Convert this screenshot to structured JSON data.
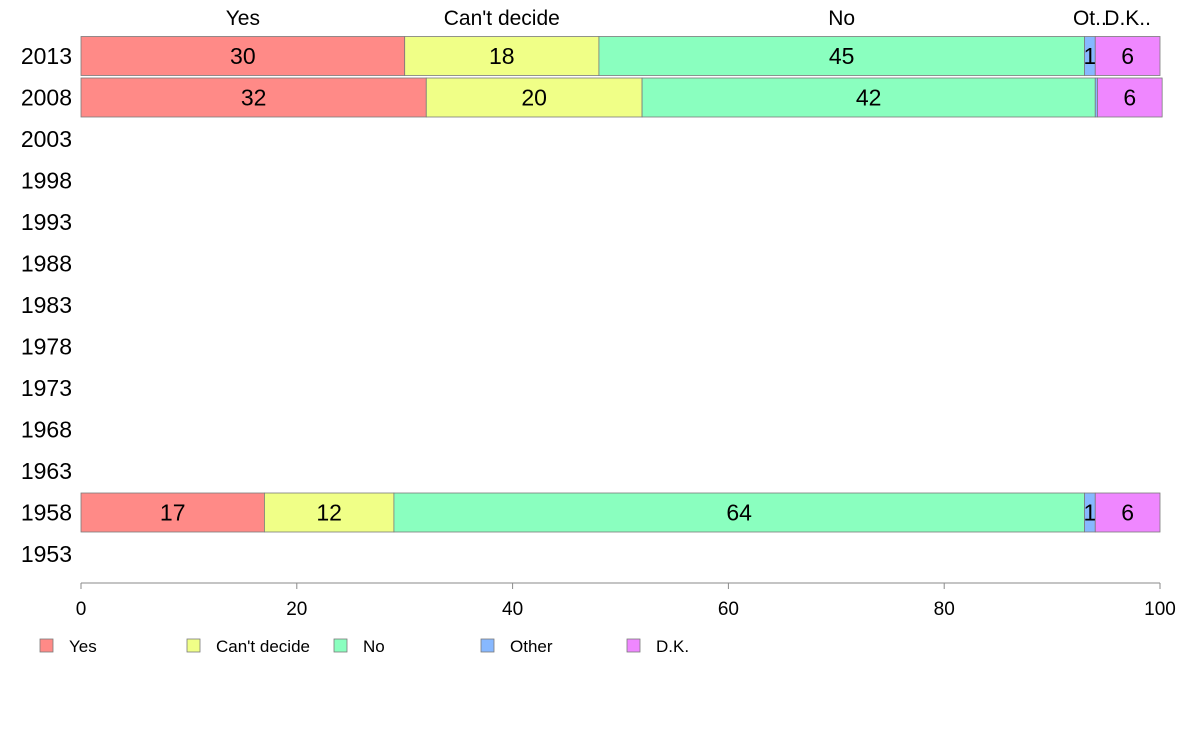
{
  "chart_data": {
    "type": "bar",
    "orientation": "horizontal",
    "stacked": true,
    "categories": [
      "2013",
      "2008",
      "2003",
      "1998",
      "1993",
      "1988",
      "1983",
      "1978",
      "1973",
      "1968",
      "1963",
      "1958",
      "1953"
    ],
    "series": [
      {
        "name": "Yes",
        "color": "#ff8a87",
        "values": [
          30,
          32,
          null,
          null,
          null,
          null,
          null,
          null,
          null,
          null,
          null,
          17,
          null
        ]
      },
      {
        "name": "Can't decide",
        "color": "#f0ff87",
        "values": [
          18,
          20,
          null,
          null,
          null,
          null,
          null,
          null,
          null,
          null,
          null,
          12,
          null
        ]
      },
      {
        "name": "No",
        "color": "#8affbf",
        "values": [
          45,
          42,
          null,
          null,
          null,
          null,
          null,
          null,
          null,
          null,
          null,
          64,
          null
        ]
      },
      {
        "name": "Other",
        "color": "#87b8ff",
        "values": [
          1,
          0.2,
          null,
          null,
          null,
          null,
          null,
          null,
          null,
          null,
          null,
          1,
          null
        ]
      },
      {
        "name": "D.K.",
        "color": "#ef87ff",
        "values": [
          6,
          6,
          null,
          null,
          null,
          null,
          null,
          null,
          null,
          null,
          null,
          6,
          null
        ]
      }
    ],
    "data_labels": [
      [
        "30",
        "18",
        "45",
        "1",
        "6"
      ],
      [
        "32",
        "20",
        "42",
        "",
        "6"
      ],
      [],
      [],
      [],
      [],
      [],
      [],
      [],
      [],
      [],
      [
        "17",
        "12",
        "64",
        "1",
        "6"
      ],
      []
    ],
    "top_labels": [
      "Yes",
      "Can't decide",
      "No",
      "Ot..",
      "D.K.."
    ],
    "xlim": [
      0,
      100
    ],
    "xticks": [
      "0",
      "20",
      "40",
      "60",
      "80",
      "100"
    ],
    "legend_labels": [
      "Yes",
      "Can't decide",
      "No",
      "Other",
      "D.K."
    ],
    "legend_position": "bottom",
    "grid": false
  }
}
